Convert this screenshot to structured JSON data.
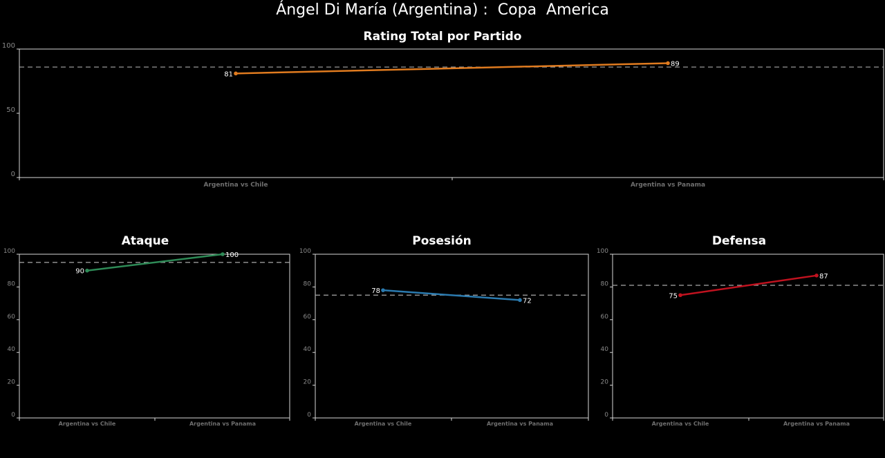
{
  "page": {
    "title": "Ángel Di María (Argentina) :  Copa  America"
  },
  "colors": {
    "background": "#000000",
    "axis": "#d9d9d9",
    "reference_line": "#aaaaaa",
    "total": "#e07b1f",
    "ataque": "#2e8b57",
    "posesion": "#2b7bb0",
    "defensa": "#c1121f"
  },
  "chart_data": [
    {
      "id": "total",
      "type": "line",
      "title": "Rating Total por Partido",
      "categories": [
        "Argentina vs Chile",
        "Argentina vs Panama"
      ],
      "values": [
        81,
        89
      ],
      "reference_line": 86,
      "ylim": [
        0,
        100
      ],
      "yticks": [
        0,
        50,
        100
      ],
      "grid": false,
      "color": "#e07b1f"
    },
    {
      "id": "ataque",
      "type": "line",
      "title": "Ataque",
      "categories": [
        "Argentina vs Chile",
        "Argentina vs Panama"
      ],
      "values": [
        90,
        100
      ],
      "reference_line": 95,
      "ylim": [
        0,
        100
      ],
      "yticks": [
        0,
        20,
        40,
        60,
        80,
        100
      ],
      "grid": false,
      "color": "#2e8b57"
    },
    {
      "id": "posesion",
      "type": "line",
      "title": "Posesión",
      "categories": [
        "Argentina vs Chile",
        "Argentina vs Panama"
      ],
      "values": [
        78,
        72
      ],
      "reference_line": 75,
      "ylim": [
        0,
        100
      ],
      "yticks": [
        0,
        20,
        40,
        60,
        80,
        100
      ],
      "grid": false,
      "color": "#2b7bb0"
    },
    {
      "id": "defensa",
      "type": "line",
      "title": "Defensa",
      "categories": [
        "Argentina vs Chile",
        "Argentina vs Panama"
      ],
      "values": [
        75,
        87
      ],
      "reference_line": 81,
      "ylim": [
        0,
        100
      ],
      "yticks": [
        0,
        20,
        40,
        60,
        80,
        100
      ],
      "grid": false,
      "color": "#c1121f"
    }
  ]
}
